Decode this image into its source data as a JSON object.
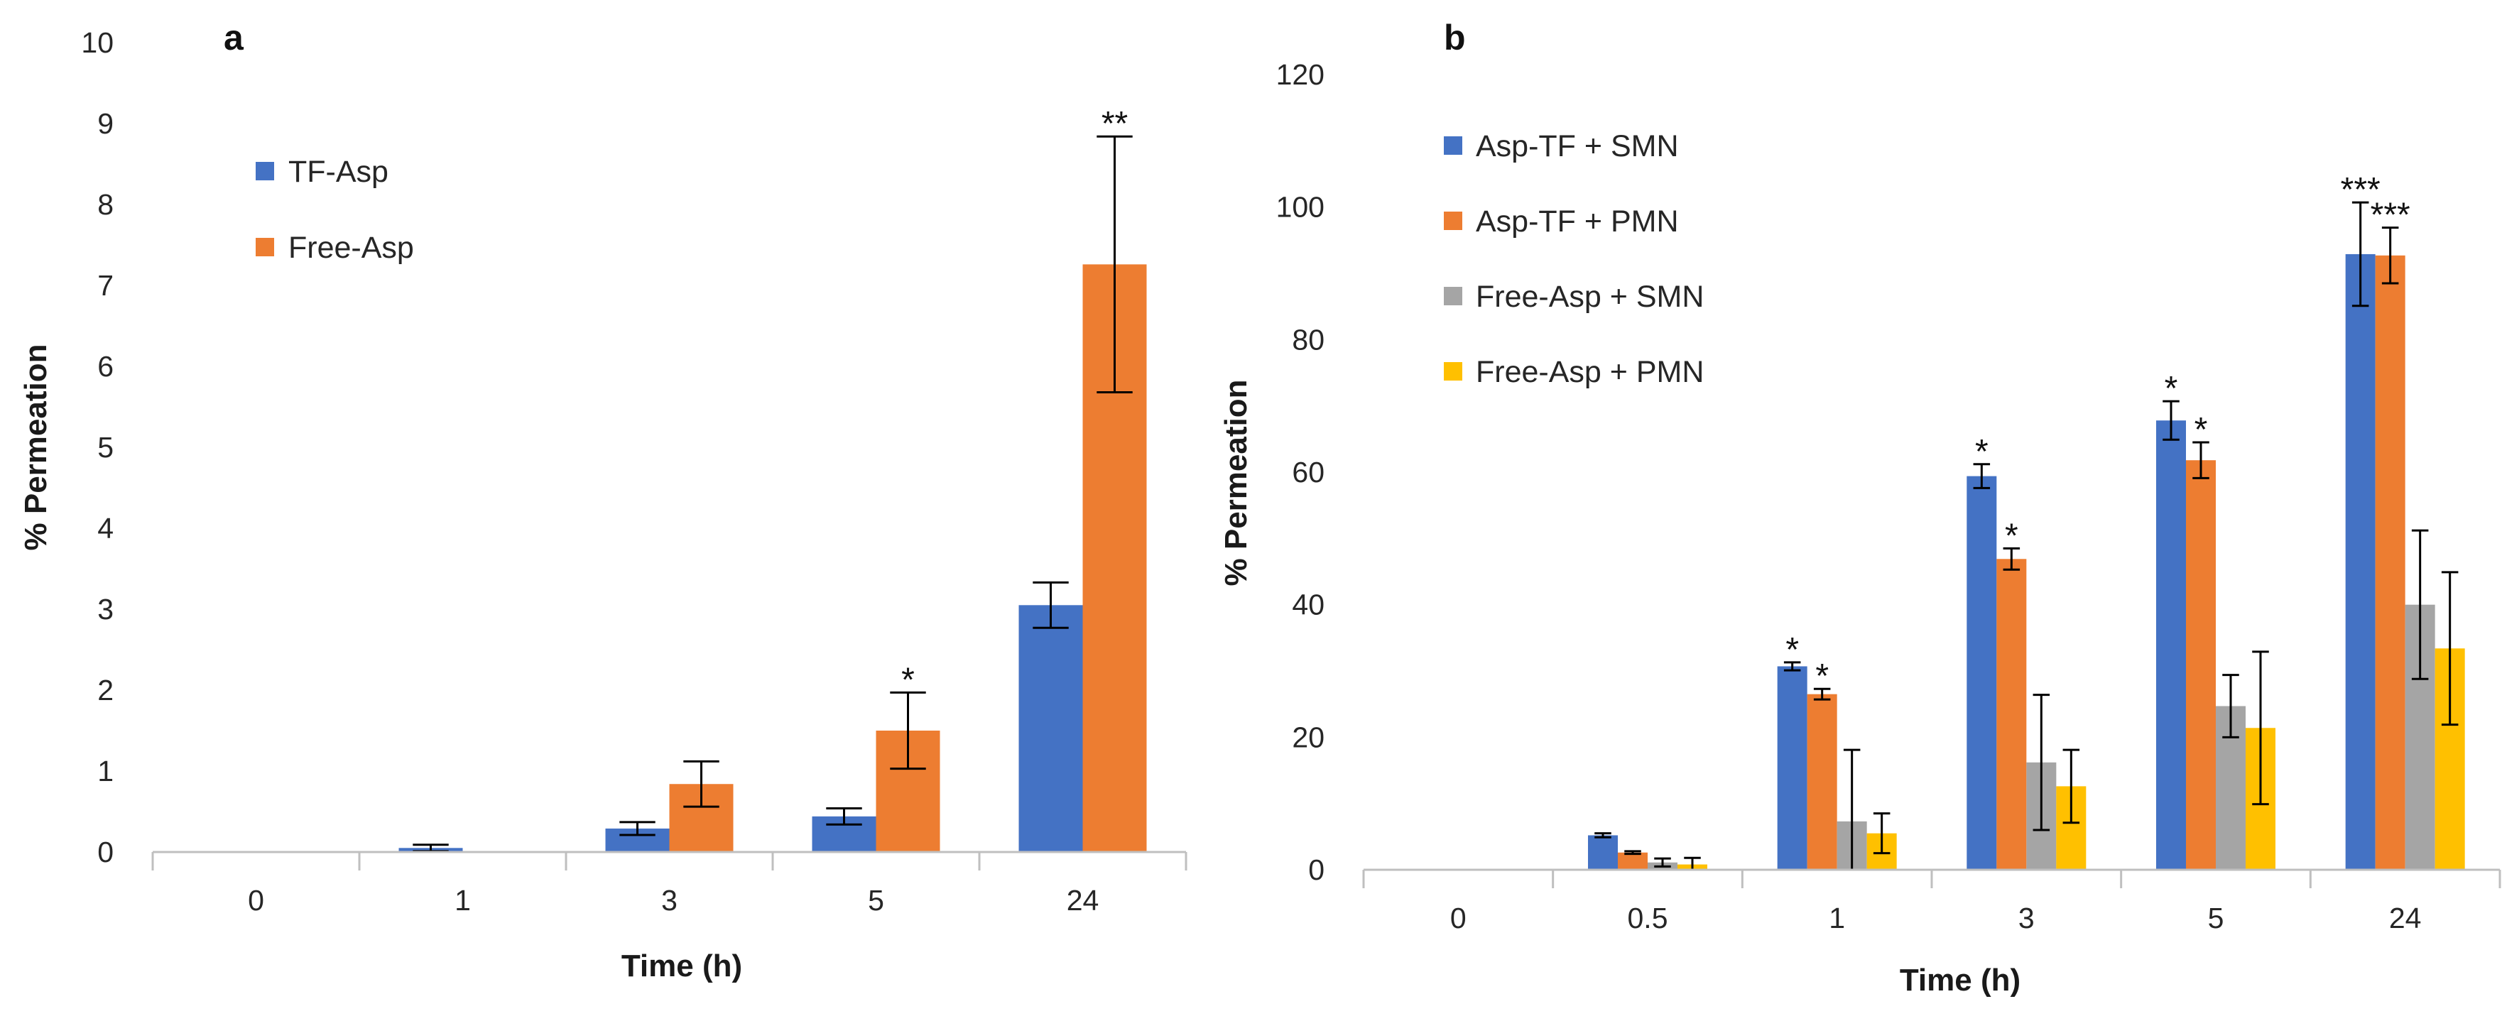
{
  "chart_data": [
    {
      "type": "bar",
      "panel_label": "a",
      "categories": [
        "0",
        "1",
        "3",
        "5",
        "24"
      ],
      "series": [
        {
          "name": "TF-Asp",
          "color": "#4472C4",
          "values": [
            0,
            0.05,
            0.29,
            0.44,
            3.05
          ],
          "errors": [
            0,
            0.04,
            0.08,
            0.1,
            0.28
          ],
          "significance": [
            "",
            "",
            "",
            "",
            ""
          ]
        },
        {
          "name": "Free-Asp",
          "color": "#ED7D31",
          "values": [
            0,
            0,
            0.84,
            1.5,
            7.26
          ],
          "errors": [
            0,
            0,
            0.28,
            0.47,
            1.58
          ],
          "significance": [
            "",
            "",
            "",
            "*",
            "**"
          ]
        }
      ],
      "xlabel": "Time (h)",
      "ylabel": "% Permeation",
      "ylim": [
        0,
        10
      ],
      "yticks": [
        0,
        1,
        2,
        3,
        4,
        5,
        6,
        7,
        8,
        9,
        10
      ],
      "legend": "top-left"
    },
    {
      "type": "bar",
      "panel_label": "b",
      "categories": [
        "0",
        "0.5",
        "1",
        "3",
        "5",
        "24"
      ],
      "series": [
        {
          "name": "Asp-TF + SMN",
          "color": "#4472C4",
          "values": [
            0,
            5.2,
            30.7,
            59.4,
            67.8,
            92.9
          ],
          "errors": [
            0,
            0.3,
            0.6,
            1.8,
            2.9,
            7.8
          ],
          "significance": [
            "",
            "",
            "*",
            "*",
            "*",
            "***"
          ]
        },
        {
          "name": "Asp-TF + PMN",
          "color": "#ED7D31",
          "values": [
            0,
            2.6,
            26.5,
            46.9,
            61.8,
            92.7
          ],
          "errors": [
            0,
            0.2,
            0.8,
            1.6,
            2.7,
            4.2
          ],
          "significance": [
            "",
            "",
            "*",
            "*",
            "*",
            "***"
          ]
        },
        {
          "name": "Free-Asp + SMN",
          "color": "#A5A5A5",
          "values": [
            0,
            1.1,
            7.3,
            16.2,
            24.7,
            40.0
          ],
          "errors": [
            0,
            0.6,
            10.8,
            10.2,
            4.7,
            11.2
          ],
          "significance": [
            "",
            "",
            "",
            "",
            "",
            ""
          ]
        },
        {
          "name": "Free-Asp + PMN",
          "color": "#FFC000",
          "values": [
            0,
            0.8,
            5.5,
            12.6,
            21.4,
            33.4
          ],
          "errors": [
            0,
            1.0,
            3.0,
            5.5,
            11.5,
            11.5
          ],
          "significance": [
            "",
            "",
            "",
            "",
            "",
            ""
          ]
        }
      ],
      "xlabel": "Time (h)",
      "ylabel": "% Permeation",
      "ylim": [
        0,
        120
      ],
      "yticks": [
        0,
        20,
        40,
        60,
        80,
        100,
        120
      ],
      "legend": "top-left"
    }
  ]
}
